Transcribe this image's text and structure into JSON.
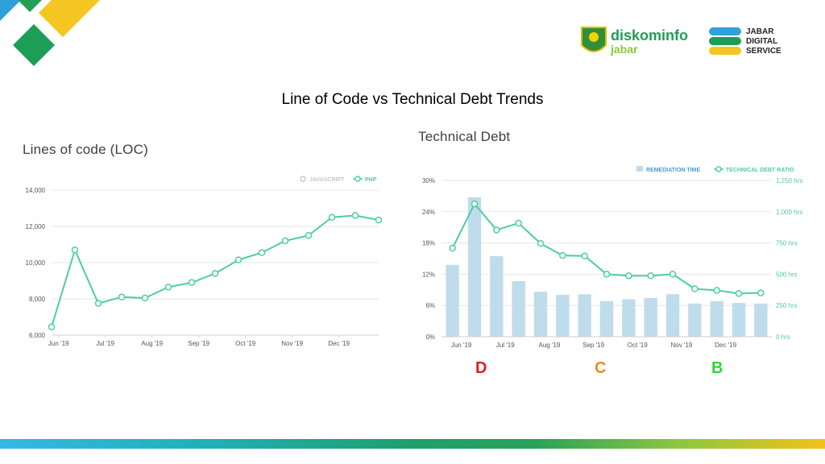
{
  "slide": {
    "title": "Line of Code vs Technical Debt Trends"
  },
  "logos": {
    "diskominfo": {
      "line1": "diskominfo",
      "line2": "jabar"
    },
    "jds": {
      "line1": "JABAR",
      "line2": "DIGITAL",
      "line3": "SERVICE"
    }
  },
  "grades": [
    {
      "letter": "D",
      "color": "#e01e1e"
    },
    {
      "letter": "C",
      "color": "#f28a1a"
    },
    {
      "letter": "B",
      "color": "#2fd62f"
    }
  ],
  "colors": {
    "teal": "#4ccf9c",
    "bar": "#bfdcec",
    "grid": "#e6e6e6"
  },
  "chart_data": [
    {
      "type": "line",
      "title": "Lines of code (LOC)",
      "legend": [
        {
          "name": "JAVASCRIPT",
          "state": "disabled",
          "color": "#c8c8c8"
        },
        {
          "name": "PHP",
          "state": "active",
          "color": "#4ccf9c"
        }
      ],
      "legend_position": "top-right",
      "yticks": [
        "6,000",
        "8,000",
        "10,000",
        "12,000",
        "14,000"
      ],
      "xticks": [
        "Jun '19",
        "Jul '19",
        "Aug '19",
        "Sep '19",
        "Oct '19",
        "Nov '19",
        "Dec '19"
      ],
      "ylim": [
        6000,
        14000
      ],
      "grid": true,
      "series": [
        {
          "name": "PHP",
          "values": [
            6450,
            10700,
            7750,
            8100,
            8050,
            8650,
            8900,
            9400,
            10150,
            10550,
            11200,
            11500,
            12500,
            12600,
            12350
          ]
        }
      ]
    },
    {
      "type": "bar+line",
      "title": "Technical Debt",
      "legend": [
        {
          "name": "REMEDIATION TIME",
          "kind": "bar"
        },
        {
          "name": "TECHNICAL DEBT RATIO",
          "kind": "line"
        }
      ],
      "legend_position": "top-right",
      "y_left_ticks": [
        "0%",
        "6%",
        "12%",
        "18%",
        "24%",
        "30%"
      ],
      "y_right_ticks": [
        "0 hrs",
        "250 hrs",
        "500 hrs",
        "750 hrs",
        "1,000 hrs",
        "1,250 hrs"
      ],
      "xticks": [
        "Jun '19",
        "Jul '19",
        "Aug '19",
        "Sep '19",
        "Oct '19",
        "Nov '19",
        "Dec '19"
      ],
      "ylim_left": [
        0,
        30
      ],
      "ylim_right": [
        0,
        1250
      ],
      "grid": true,
      "series": [
        {
          "name": "REMEDIATION TIME",
          "axis": "right",
          "values": [
            575,
            1115,
            645,
            445,
            360,
            335,
            340,
            285,
            300,
            310,
            340,
            265,
            285,
            270,
            265
          ]
        },
        {
          "name": "TECHNICAL DEBT RATIO",
          "axis": "left",
          "values": [
            17,
            25.5,
            20.5,
            21.8,
            17.9,
            15.6,
            15.5,
            12,
            11.7,
            11.7,
            12,
            9.2,
            8.9,
            8.3,
            8.4
          ]
        }
      ]
    }
  ]
}
